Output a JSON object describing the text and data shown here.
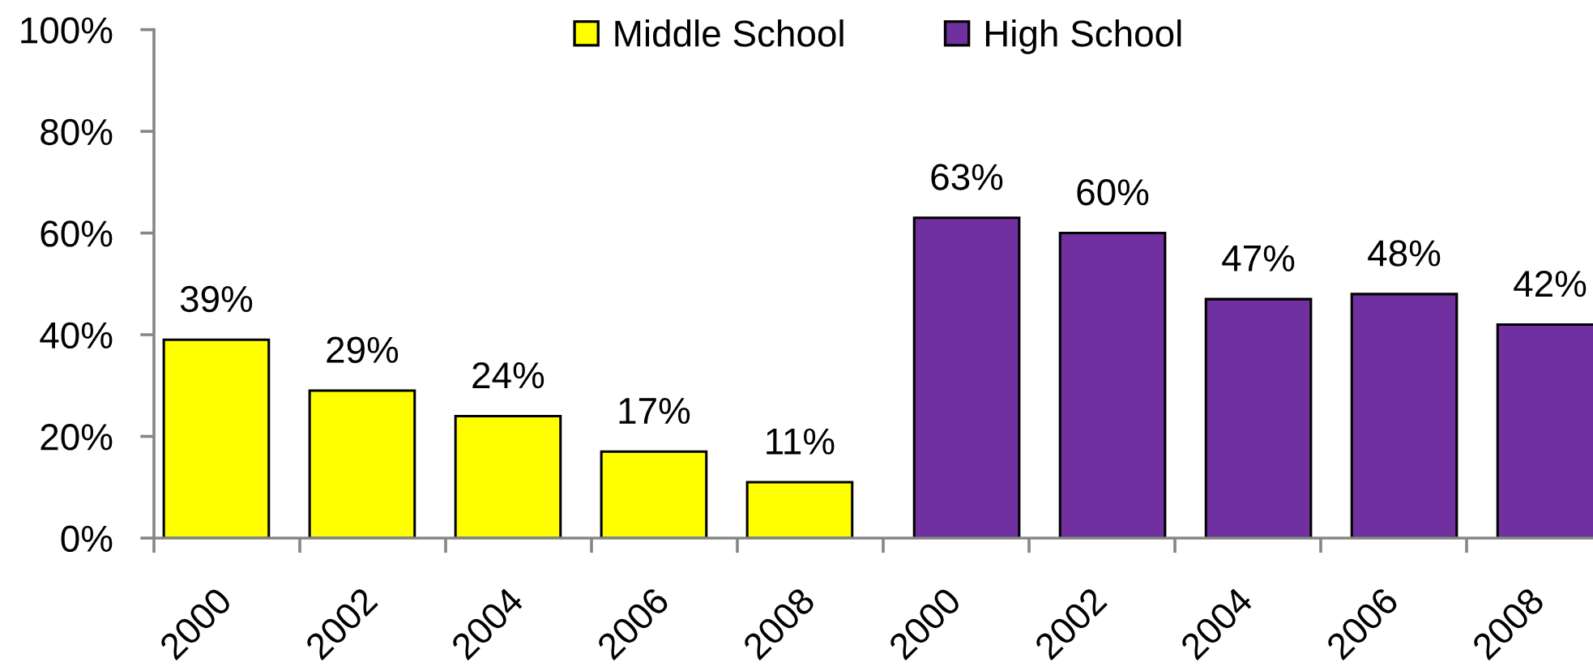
{
  "chart_data": {
    "type": "bar",
    "categories": [
      "2000",
      "2002",
      "2004",
      "2006",
      "2008",
      "2000",
      "2002",
      "2004",
      "2006",
      "2008"
    ],
    "series": [
      {
        "name": "Middle School",
        "color": "#ffff00",
        "values": [
          39,
          29,
          24,
          17,
          11,
          null,
          null,
          null,
          null,
          null
        ],
        "value_labels": [
          "39%",
          "29%",
          "24%",
          "17%",
          "11%",
          null,
          null,
          null,
          null,
          null
        ]
      },
      {
        "name": "High School",
        "color": "#7030a0",
        "values": [
          null,
          null,
          null,
          null,
          null,
          63,
          60,
          47,
          48,
          42
        ],
        "value_labels": [
          null,
          null,
          null,
          null,
          null,
          "63%",
          "60%",
          "47%",
          "48%",
          "42%"
        ]
      }
    ],
    "ylim": [
      0,
      100
    ],
    "yticks": [
      {
        "value": 0,
        "label": "0%"
      },
      {
        "value": 20,
        "label": "20%"
      },
      {
        "value": 40,
        "label": "40%"
      },
      {
        "value": 60,
        "label": "60%"
      },
      {
        "value": 80,
        "label": "80%"
      },
      {
        "value": 100,
        "label": "100%"
      }
    ],
    "legend": "top"
  }
}
